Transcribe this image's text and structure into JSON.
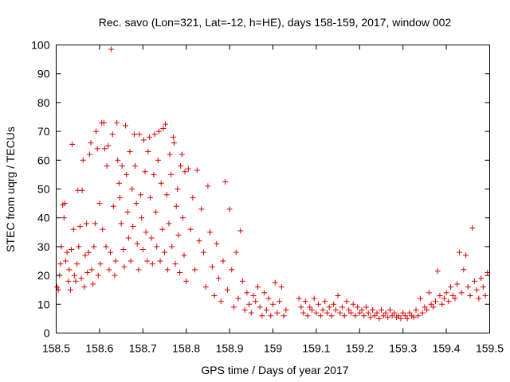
{
  "chart_data": {
    "type": "scatter",
    "title": "Rec. savo (Lon=321, Lat=-12, h=HE), days 158-159, 2017, window 002",
    "xlabel": "GPS time / Days of year 2017",
    "ylabel": "STEC from uqrg / TECUs",
    "xlim": [
      158.5,
      159.5
    ],
    "ylim": [
      0,
      100
    ],
    "xticks": [
      158.5,
      158.6,
      158.7,
      158.8,
      158.9,
      159.0,
      159.1,
      159.2,
      159.3,
      159.4,
      159.5
    ],
    "xtick_labels": [
      "158.5",
      "158.6",
      "158.7",
      "158.8",
      "158.9",
      "159",
      "159.1",
      "159.2",
      "159.3",
      "159.4",
      "159.5"
    ],
    "yticks": [
      0,
      10,
      20,
      30,
      40,
      50,
      60,
      70,
      80,
      90,
      100
    ],
    "ytick_labels": [
      "0",
      "10",
      "20",
      "30",
      "40",
      "50",
      "60",
      "70",
      "80",
      "90",
      "100"
    ],
    "grid": false,
    "marker": "plus",
    "color": "#dd0000",
    "series": [
      {
        "name": "STEC",
        "points": [
          [
            158.502,
            16
          ],
          [
            158.505,
            15
          ],
          [
            158.508,
            20
          ],
          [
            158.51,
            24
          ],
          [
            158.512,
            30
          ],
          [
            158.515,
            44.5
          ],
          [
            158.518,
            40
          ],
          [
            158.52,
            45
          ],
          [
            158.522,
            25
          ],
          [
            158.525,
            28
          ],
          [
            158.528,
            18
          ],
          [
            158.53,
            22
          ],
          [
            158.533,
            15
          ],
          [
            158.535,
            29
          ],
          [
            158.537,
            65.5
          ],
          [
            158.54,
            36
          ],
          [
            158.542,
            20
          ],
          [
            158.545,
            18
          ],
          [
            158.548,
            24
          ],
          [
            158.55,
            49.5
          ],
          [
            158.552,
            30
          ],
          [
            158.555,
            37
          ],
          [
            158.558,
            19
          ],
          [
            158.56,
            49.5
          ],
          [
            158.562,
            60
          ],
          [
            158.565,
            16
          ],
          [
            158.567,
            27
          ],
          [
            158.57,
            38
          ],
          [
            158.572,
            21
          ],
          [
            158.575,
            28
          ],
          [
            158.577,
            62
          ],
          [
            158.58,
            66
          ],
          [
            158.582,
            22
          ],
          [
            158.585,
            17
          ],
          [
            158.587,
            30
          ],
          [
            158.59,
            38
          ],
          [
            158.592,
            70
          ],
          [
            158.595,
            64
          ],
          [
            158.597,
            20
          ],
          [
            158.6,
            45
          ],
          [
            158.602,
            24
          ],
          [
            158.605,
            73
          ],
          [
            158.607,
            36
          ],
          [
            158.61,
            73
          ],
          [
            158.612,
            64
          ],
          [
            158.615,
            30
          ],
          [
            158.617,
            58
          ],
          [
            158.62,
            65
          ],
          [
            158.622,
            22
          ],
          [
            158.625,
            28
          ],
          [
            158.627,
            98.5
          ],
          [
            158.63,
            69
          ],
          [
            158.632,
            44
          ],
          [
            158.635,
            20
          ],
          [
            158.637,
            25
          ],
          [
            158.64,
            73
          ],
          [
            158.642,
            60
          ],
          [
            158.645,
            52
          ],
          [
            158.647,
            47
          ],
          [
            158.65,
            38
          ],
          [
            158.652,
            58
          ],
          [
            158.655,
            29
          ],
          [
            158.657,
            23
          ],
          [
            158.66,
            72
          ],
          [
            158.662,
            55
          ],
          [
            158.665,
            42
          ],
          [
            158.667,
            33
          ],
          [
            158.67,
            63
          ],
          [
            158.672,
            25
          ],
          [
            158.675,
            50
          ],
          [
            158.677,
            37
          ],
          [
            158.68,
            69
          ],
          [
            158.682,
            58
          ],
          [
            158.685,
            45
          ],
          [
            158.687,
            31
          ],
          [
            158.69,
            22
          ],
          [
            158.692,
            69
          ],
          [
            158.695,
            48
          ],
          [
            158.697,
            40
          ],
          [
            158.7,
            29
          ],
          [
            158.702,
            67
          ],
          [
            158.705,
            56
          ],
          [
            158.707,
            35
          ],
          [
            158.71,
            25
          ],
          [
            158.712,
            63
          ],
          [
            158.715,
            68
          ],
          [
            158.717,
            47
          ],
          [
            158.72,
            33
          ],
          [
            158.722,
            24
          ],
          [
            158.725,
            55
          ],
          [
            158.727,
            69
          ],
          [
            158.73,
            42
          ],
          [
            158.732,
            30
          ],
          [
            158.735,
            60
          ],
          [
            158.737,
            70
          ],
          [
            158.74,
            25
          ],
          [
            158.742,
            52
          ],
          [
            158.745,
            36
          ],
          [
            158.747,
            71
          ],
          [
            158.75,
            28
          ],
          [
            158.752,
            72.5
          ],
          [
            158.755,
            48
          ],
          [
            158.757,
            22
          ],
          [
            158.76,
            38
          ],
          [
            158.762,
            62
          ],
          [
            158.765,
            55
          ],
          [
            158.767,
            30
          ],
          [
            158.77,
            68
          ],
          [
            158.772,
            66
          ],
          [
            158.775,
            24
          ],
          [
            158.777,
            44
          ],
          [
            158.78,
            50
          ],
          [
            158.782,
            34
          ],
          [
            158.785,
            21
          ],
          [
            158.787,
            58
          ],
          [
            158.79,
            62
          ],
          [
            158.792,
            40
          ],
          [
            158.795,
            27
          ],
          [
            158.797,
            56
          ],
          [
            158.8,
            18
          ],
          [
            158.805,
            57
          ],
          [
            158.81,
            36
          ],
          [
            158.815,
            47
          ],
          [
            158.82,
            22
          ],
          [
            158.825,
            56.5
          ],
          [
            158.83,
            32
          ],
          [
            158.835,
            43
          ],
          [
            158.84,
            28
          ],
          [
            158.845,
            16
          ],
          [
            158.85,
            51
          ],
          [
            158.855,
            35
          ],
          [
            158.86,
            23
          ],
          [
            158.865,
            13
          ],
          [
            158.87,
            31
          ],
          [
            158.875,
            19
          ],
          [
            158.88,
            11
          ],
          [
            158.885,
            25
          ],
          [
            158.89,
            52.5
          ],
          [
            158.895,
            15
          ],
          [
            158.9,
            43
          ],
          [
            158.905,
            22
          ],
          [
            158.91,
            9
          ],
          [
            158.915,
            28
          ],
          [
            158.92,
            12
          ],
          [
            158.925,
            35.5
          ],
          [
            158.93,
            18
          ],
          [
            158.935,
            8
          ],
          [
            158.94,
            14
          ],
          [
            158.945,
            10
          ],
          [
            158.95,
            7
          ],
          [
            158.955,
            13
          ],
          [
            158.96,
            11
          ],
          [
            158.965,
            16
          ],
          [
            158.97,
            9
          ],
          [
            158.975,
            6
          ],
          [
            158.98,
            14
          ],
          [
            158.985,
            8
          ],
          [
            158.99,
            12
          ],
          [
            158.995,
            6
          ],
          [
            159.0,
            10
          ],
          [
            159.005,
            17.5
          ],
          [
            159.01,
            7
          ],
          [
            159.015,
            11
          ],
          [
            159.02,
            16
          ],
          [
            159.025,
            6
          ],
          [
            159.03,
            8
          ],
          [
            159.06,
            12
          ],
          [
            159.065,
            9
          ],
          [
            159.07,
            7
          ],
          [
            159.075,
            11
          ],
          [
            159.08,
            6
          ],
          [
            159.085,
            9
          ],
          [
            159.09,
            8
          ],
          [
            159.095,
            12
          ],
          [
            159.1,
            7
          ],
          [
            159.105,
            10
          ],
          [
            159.11,
            6
          ],
          [
            159.115,
            8
          ],
          [
            159.12,
            11
          ],
          [
            159.125,
            7
          ],
          [
            159.13,
            9
          ],
          [
            159.135,
            6
          ],
          [
            159.14,
            10
          ],
          [
            159.145,
            8
          ],
          [
            159.15,
            13
          ],
          [
            159.155,
            7
          ],
          [
            159.16,
            9
          ],
          [
            159.165,
            6
          ],
          [
            159.17,
            11
          ],
          [
            159.175,
            8
          ],
          [
            159.18,
            7
          ],
          [
            159.185,
            10
          ],
          [
            159.19,
            6
          ],
          [
            159.195,
            9
          ],
          [
            159.2,
            7
          ],
          [
            159.205,
            8
          ],
          [
            159.21,
            6
          ],
          [
            159.215,
            9
          ],
          [
            159.22,
            7
          ],
          [
            159.225,
            5.5
          ],
          [
            159.23,
            8
          ],
          [
            159.235,
            6
          ],
          [
            159.24,
            7
          ],
          [
            159.245,
            5
          ],
          [
            159.25,
            8
          ],
          [
            159.255,
            6
          ],
          [
            159.26,
            7
          ],
          [
            159.265,
            5.5
          ],
          [
            159.27,
            8
          ],
          [
            159.275,
            6
          ],
          [
            159.28,
            7
          ],
          [
            159.285,
            5.5
          ],
          [
            159.29,
            6
          ],
          [
            159.295,
            5
          ],
          [
            159.3,
            7
          ],
          [
            159.305,
            6
          ],
          [
            159.31,
            5
          ],
          [
            159.315,
            7
          ],
          [
            159.32,
            6
          ],
          [
            159.325,
            5.5
          ],
          [
            159.33,
            8
          ],
          [
            159.335,
            6
          ],
          [
            159.34,
            12
          ],
          [
            159.345,
            7
          ],
          [
            159.35,
            9
          ],
          [
            159.355,
            8
          ],
          [
            159.36,
            14
          ],
          [
            159.365,
            10
          ],
          [
            159.37,
            9
          ],
          [
            159.375,
            11
          ],
          [
            159.38,
            21.5
          ],
          [
            159.385,
            13
          ],
          [
            159.39,
            10
          ],
          [
            159.395,
            12
          ],
          [
            159.4,
            14
          ],
          [
            159.405,
            11
          ],
          [
            159.41,
            16
          ],
          [
            159.415,
            13
          ],
          [
            159.42,
            12
          ],
          [
            159.425,
            17
          ],
          [
            159.43,
            28
          ],
          [
            159.435,
            14
          ],
          [
            159.44,
            22
          ],
          [
            159.445,
            27
          ],
          [
            159.45,
            16
          ],
          [
            159.455,
            13
          ],
          [
            159.46,
            36.5
          ],
          [
            159.465,
            18
          ],
          [
            159.47,
            15
          ],
          [
            159.475,
            12
          ],
          [
            159.48,
            19
          ],
          [
            159.485,
            16
          ],
          [
            159.49,
            13
          ],
          [
            159.495,
            21
          ]
        ]
      }
    ]
  }
}
